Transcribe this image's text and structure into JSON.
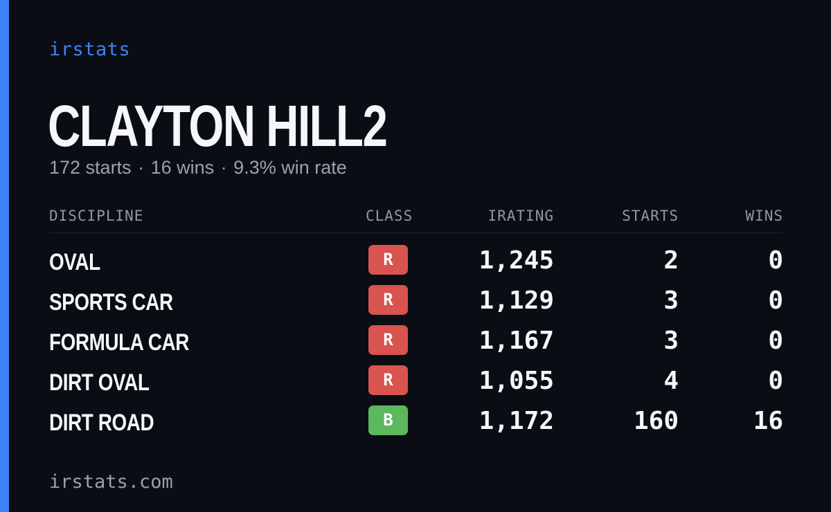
{
  "brand": "irstats",
  "player": {
    "name": "CLAYTON HILL2"
  },
  "summary": {
    "starts": "172 starts",
    "wins": "16 wins",
    "win_rate": "9.3% win rate",
    "separator": "·"
  },
  "table": {
    "headers": {
      "discipline": "DISCIPLINE",
      "class": "CLASS",
      "irating": "IRATING",
      "starts": "STARTS",
      "wins": "WINS"
    },
    "rows": [
      {
        "discipline": "OVAL",
        "class": "R",
        "class_color": "#d9534f",
        "irating": "1,245",
        "starts": "2",
        "wins": "0"
      },
      {
        "discipline": "SPORTS CAR",
        "class": "R",
        "class_color": "#d9534f",
        "irating": "1,129",
        "starts": "3",
        "wins": "0"
      },
      {
        "discipline": "FORMULA CAR",
        "class": "R",
        "class_color": "#d9534f",
        "irating": "1,167",
        "starts": "3",
        "wins": "0"
      },
      {
        "discipline": "DIRT OVAL",
        "class": "R",
        "class_color": "#d9534f",
        "irating": "1,055",
        "starts": "4",
        "wins": "0"
      },
      {
        "discipline": "DIRT ROAD",
        "class": "B",
        "class_color": "#5cb85c",
        "irating": "1,172",
        "starts": "160",
        "wins": "16"
      }
    ]
  },
  "footer": "irstats.com",
  "colors": {
    "accent": "#3b82f6",
    "background": "#0b0d14",
    "class_r": "#d9534f",
    "class_b": "#5cb85c"
  }
}
